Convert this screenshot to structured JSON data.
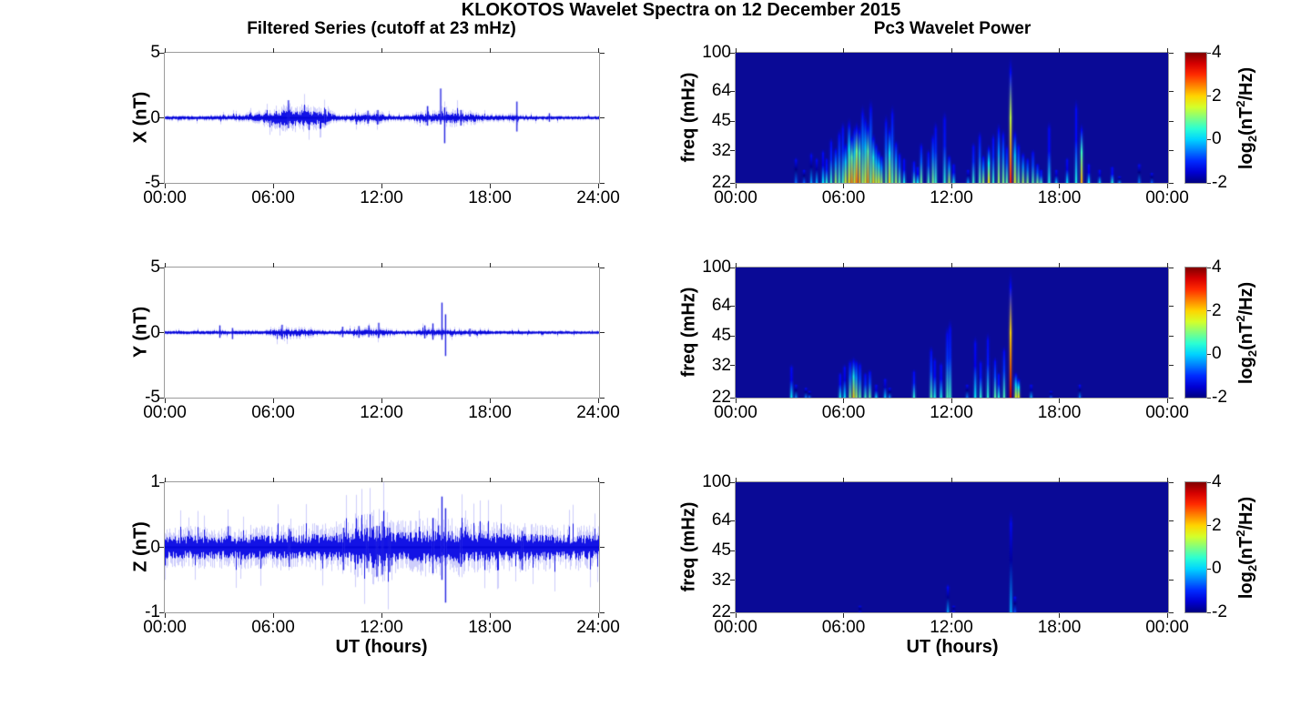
{
  "figure": {
    "title": "KLOKOTOS Wavelet Spectra on 12 December 2015",
    "background": "#ffffff"
  },
  "left_column": {
    "title": "Filtered Series (cutoff at 23 mHz)",
    "xlabel": "UT (hours)",
    "xtick_labels": [
      "00:00",
      "06:00",
      "12:00",
      "18:00",
      "24:00"
    ],
    "line_color": "#0000e0"
  },
  "right_column": {
    "title": "Pc3 Wavelet Power",
    "xlabel": "UT (hours)",
    "ylabel": "freq (mHz)",
    "xtick_labels": [
      "00:00",
      "06:00",
      "12:00",
      "18:00",
      "00:00"
    ],
    "freq_tick_labels": [
      "100",
      "64",
      "45",
      "32",
      "22"
    ],
    "freq_ticks_mhz": [
      100,
      64,
      45,
      32,
      22
    ],
    "colorbar": {
      "tick_labels": [
        "4",
        "2",
        "0",
        "-2"
      ],
      "tick_values": [
        4,
        2,
        0,
        -2
      ],
      "clim": [
        -2,
        4
      ],
      "colormap": "jet",
      "label": {
        "base": "log",
        "sub": "2",
        "mid": "(nT",
        "sup": "2",
        "end": "/Hz)"
      }
    }
  },
  "chart_data": [
    {
      "id": "x_filtered_series",
      "type": "line",
      "ylabel": "X (nT)",
      "ylim": [
        -5,
        5
      ],
      "ytick_labels": [
        "5",
        "0",
        "-5"
      ],
      "x_range_hours": [
        0,
        24
      ],
      "noise_envelope": [
        [
          0,
          0.055
        ],
        [
          3,
          0.06
        ],
        [
          4.3,
          0.09
        ],
        [
          5.2,
          0.13
        ],
        [
          6.0,
          0.22
        ],
        [
          6.8,
          0.26
        ],
        [
          7.6,
          0.26
        ],
        [
          8.4,
          0.2
        ],
        [
          9.2,
          0.16
        ],
        [
          9.6,
          0.07
        ],
        [
          10.2,
          0.1
        ],
        [
          10.8,
          0.13
        ],
        [
          11.8,
          0.13
        ],
        [
          12.5,
          0.07
        ],
        [
          13.6,
          0.08
        ],
        [
          14.2,
          0.14
        ],
        [
          15.0,
          0.16
        ],
        [
          16.0,
          0.17
        ],
        [
          16.8,
          0.15
        ],
        [
          17.6,
          0.1
        ],
        [
          18.4,
          0.08
        ],
        [
          19.2,
          0.1
        ],
        [
          19.9,
          0.07
        ],
        [
          21.0,
          0.05
        ],
        [
          22.5,
          0.05
        ],
        [
          24,
          0.045
        ]
      ],
      "spikes": [
        [
          6.85,
          1.35,
          -0.8
        ],
        [
          8.9,
          0.65,
          -0.55
        ],
        [
          11.25,
          0.55,
          -0.45
        ],
        [
          11.8,
          0.6,
          -0.5
        ],
        [
          14.55,
          0.9,
          -0.6
        ],
        [
          15.28,
          2.25,
          -0.5
        ],
        [
          15.5,
          0.8,
          -1.95
        ],
        [
          16.4,
          0.6,
          -0.6
        ],
        [
          19.5,
          1.25,
          -1.05
        ],
        [
          21.3,
          0.35,
          -0.3
        ]
      ]
    },
    {
      "id": "y_filtered_series",
      "type": "line",
      "ylabel": "Y (nT)",
      "ylim": [
        -5,
        5
      ],
      "ytick_labels": [
        "5",
        "0",
        "-5"
      ],
      "x_range_hours": [
        0,
        24
      ],
      "noise_envelope": [
        [
          0,
          0.045
        ],
        [
          2.9,
          0.05
        ],
        [
          3.1,
          0.07
        ],
        [
          3.4,
          0.05
        ],
        [
          5.6,
          0.06
        ],
        [
          6.2,
          0.11
        ],
        [
          6.8,
          0.13
        ],
        [
          7.8,
          0.12
        ],
        [
          8.5,
          0.07
        ],
        [
          9.4,
          0.05
        ],
        [
          10.0,
          0.07
        ],
        [
          10.8,
          0.09
        ],
        [
          11.6,
          0.1
        ],
        [
          12.3,
          0.09
        ],
        [
          12.9,
          0.05
        ],
        [
          13.8,
          0.06
        ],
        [
          14.3,
          0.1
        ],
        [
          15.2,
          0.09
        ],
        [
          16.2,
          0.08
        ],
        [
          17.0,
          0.06
        ],
        [
          18.0,
          0.05
        ],
        [
          20.0,
          0.045
        ],
        [
          24,
          0.04
        ]
      ],
      "spikes": [
        [
          3.05,
          0.55,
          -0.4
        ],
        [
          3.75,
          0.35,
          -0.5
        ],
        [
          6.5,
          0.6,
          -0.5
        ],
        [
          9.85,
          0.45,
          -0.35
        ],
        [
          10.75,
          0.5,
          -0.4
        ],
        [
          11.3,
          0.55,
          -0.35
        ],
        [
          11.85,
          0.75,
          -0.4
        ],
        [
          14.4,
          0.55,
          -0.45
        ],
        [
          14.85,
          0.7,
          -0.55
        ],
        [
          15.35,
          2.3,
          -0.55
        ],
        [
          15.55,
          1.4,
          -1.8
        ],
        [
          16.9,
          0.3,
          -0.3
        ]
      ]
    },
    {
      "id": "z_filtered_series",
      "type": "line",
      "ylabel": "Z (nT)",
      "ylim": [
        -1,
        1
      ],
      "ytick_labels": [
        "1",
        "0",
        "-1"
      ],
      "x_range_hours": [
        0,
        24
      ],
      "noise_envelope": [
        [
          0,
          0.075
        ],
        [
          4,
          0.078
        ],
        [
          6,
          0.082
        ],
        [
          8,
          0.085
        ],
        [
          9.5,
          0.095
        ],
        [
          10.5,
          0.105
        ],
        [
          11.3,
          0.13
        ],
        [
          12.1,
          0.14
        ],
        [
          12.8,
          0.105
        ],
        [
          13.6,
          0.095
        ],
        [
          14.4,
          0.105
        ],
        [
          15.2,
          0.105
        ],
        [
          16.2,
          0.11
        ],
        [
          17.2,
          0.095
        ],
        [
          18.5,
          0.09
        ],
        [
          20.0,
          0.088
        ],
        [
          22,
          0.082
        ],
        [
          24,
          0.078
        ]
      ],
      "spikes": [
        [
          6.9,
          0.28,
          -0.3
        ],
        [
          9.9,
          0.3,
          -0.35
        ],
        [
          11.2,
          0.3,
          -0.32
        ],
        [
          11.75,
          0.33,
          -0.45
        ],
        [
          12.05,
          0.4,
          -0.42
        ],
        [
          12.45,
          0.3,
          -0.38
        ],
        [
          14.85,
          0.45,
          -0.4
        ],
        [
          15.35,
          0.78,
          -0.5
        ],
        [
          15.55,
          0.6,
          -0.85
        ],
        [
          16.4,
          0.3,
          -0.3
        ],
        [
          19.8,
          0.25,
          -0.35
        ]
      ]
    },
    {
      "id": "x_wavelet_power",
      "type": "heatmap",
      "component": "X",
      "freq_range_mhz": [
        22,
        100
      ],
      "power_range_log2": [
        -2,
        4
      ],
      "background_power": -2,
      "streaks": [
        [
          3.35,
          30,
          -0.6
        ],
        [
          3.8,
          26,
          -0.7
        ],
        [
          4.2,
          32,
          -0.3
        ],
        [
          4.5,
          30,
          -0.2
        ],
        [
          4.85,
          33,
          0.2
        ],
        [
          5.05,
          30,
          0.5
        ],
        [
          5.3,
          38,
          0.6
        ],
        [
          5.55,
          34,
          1.2
        ],
        [
          5.75,
          42,
          0.8
        ],
        [
          5.95,
          46,
          0.6
        ],
        [
          6.1,
          36,
          1.6
        ],
        [
          6.3,
          48,
          1.8
        ],
        [
          6.45,
          40,
          2.4
        ],
        [
          6.6,
          44,
          1.6
        ],
        [
          6.72,
          46,
          2.6
        ],
        [
          6.88,
          44,
          2.2
        ],
        [
          7.05,
          56,
          1.2
        ],
        [
          7.2,
          50,
          1.6
        ],
        [
          7.35,
          46,
          2.4
        ],
        [
          7.5,
          60,
          1.0
        ],
        [
          7.65,
          40,
          2.0
        ],
        [
          7.8,
          36,
          1.4
        ],
        [
          7.95,
          33,
          1.6
        ],
        [
          8.1,
          31,
          1.2
        ],
        [
          8.35,
          50,
          0.9
        ],
        [
          8.55,
          44,
          1.8
        ],
        [
          8.7,
          56,
          0.8
        ],
        [
          8.9,
          37,
          1.2
        ],
        [
          9.1,
          32,
          0.8
        ],
        [
          9.35,
          30,
          0.4
        ],
        [
          9.9,
          29,
          0.6
        ],
        [
          10.1,
          27,
          0.3
        ],
        [
          10.3,
          36,
          0.9
        ],
        [
          10.7,
          33,
          0.7
        ],
        [
          10.95,
          40,
          1.0
        ],
        [
          11.1,
          46,
          0.6
        ],
        [
          11.6,
          52,
          0.5
        ],
        [
          11.85,
          31,
          1.2
        ],
        [
          12.1,
          28,
          0.4
        ],
        [
          12.9,
          26,
          -0.2
        ],
        [
          13.2,
          36,
          0.6
        ],
        [
          13.55,
          41,
          0.8
        ],
        [
          13.75,
          31,
          1.1
        ],
        [
          14.05,
          35,
          1.8
        ],
        [
          14.3,
          40,
          0.6
        ],
        [
          14.6,
          45,
          1.2
        ],
        [
          14.85,
          42,
          1.0
        ],
        [
          15.05,
          35,
          0.8
        ],
        [
          15.26,
          100,
          3.0
        ],
        [
          15.5,
          42,
          1.6
        ],
        [
          15.7,
          36,
          1.0
        ],
        [
          15.95,
          32,
          1.2
        ],
        [
          16.2,
          30,
          1.0
        ],
        [
          16.5,
          33,
          0.8
        ],
        [
          16.75,
          28,
          0.9
        ],
        [
          16.95,
          26,
          0.6
        ],
        [
          17.4,
          46,
          0.4
        ],
        [
          17.8,
          26,
          0.0
        ],
        [
          18.4,
          30,
          0.2
        ],
        [
          18.9,
          60,
          0.4
        ],
        [
          19.2,
          45,
          2.2
        ],
        [
          19.6,
          28,
          0.3
        ],
        [
          20.2,
          26,
          0.0
        ],
        [
          20.9,
          27,
          0.4
        ],
        [
          21.3,
          24,
          -0.3
        ],
        [
          22.4,
          28,
          -0.5
        ],
        [
          23.1,
          25,
          -0.7
        ]
      ]
    },
    {
      "id": "y_wavelet_power",
      "type": "heatmap",
      "component": "Y",
      "freq_range_mhz": [
        22,
        100
      ],
      "power_range_log2": [
        -2,
        4
      ],
      "background_power": -2,
      "streaks": [
        [
          3.1,
          33,
          0.3
        ],
        [
          3.35,
          26,
          -0.4
        ],
        [
          3.9,
          25,
          -0.5
        ],
        [
          4.1,
          24,
          -0.6
        ],
        [
          5.8,
          30,
          0.4
        ],
        [
          6.05,
          33,
          0.2
        ],
        [
          6.35,
          35,
          1.0
        ],
        [
          6.55,
          36,
          2.0
        ],
        [
          6.7,
          35,
          1.2
        ],
        [
          6.9,
          34,
          0.8
        ],
        [
          7.2,
          30,
          0.6
        ],
        [
          7.45,
          31,
          0.8
        ],
        [
          7.8,
          26,
          0.1
        ],
        [
          8.3,
          28,
          0.0
        ],
        [
          8.55,
          25,
          -0.4
        ],
        [
          9.9,
          31,
          0.5
        ],
        [
          10.85,
          41,
          0.7
        ],
        [
          11.05,
          36,
          0.4
        ],
        [
          11.4,
          34,
          0.4
        ],
        [
          11.75,
          52,
          0.7
        ],
        [
          11.9,
          56,
          0.6
        ],
        [
          12.85,
          26,
          -0.5
        ],
        [
          13.3,
          46,
          0.3
        ],
        [
          13.6,
          35,
          0.5
        ],
        [
          14.0,
          48,
          0.5
        ],
        [
          14.4,
          36,
          0.8
        ],
        [
          14.6,
          30,
          0.5
        ],
        [
          14.9,
          41,
          0.7
        ],
        [
          15.26,
          100,
          3.6
        ],
        [
          15.55,
          30,
          1.6
        ],
        [
          15.7,
          28,
          1.8
        ],
        [
          16.4,
          26,
          -0.2
        ],
        [
          17.5,
          24,
          -0.8
        ],
        [
          19.1,
          26,
          -0.5
        ]
      ]
    },
    {
      "id": "z_wavelet_power",
      "type": "heatmap",
      "component": "Z",
      "freq_range_mhz": [
        22,
        100
      ],
      "power_range_log2": [
        -2,
        4
      ],
      "background_power": -2,
      "streaks": [
        [
          6.9,
          24,
          -1.5
        ],
        [
          11.78,
          31,
          -0.3
        ],
        [
          12.1,
          24,
          -1.2
        ],
        [
          15.28,
          74,
          -0.2
        ],
        [
          15.5,
          27,
          -0.8
        ]
      ]
    }
  ]
}
